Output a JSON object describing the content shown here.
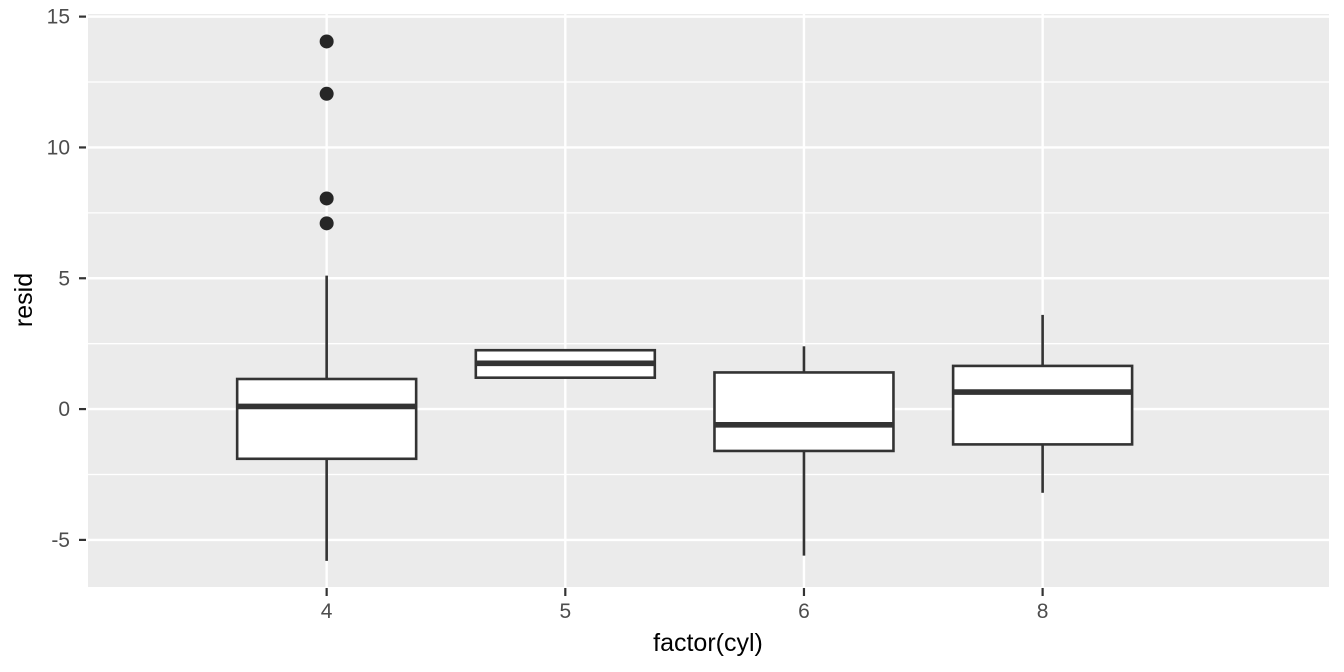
{
  "chart_data": {
    "type": "boxplot",
    "title": "",
    "xlabel": "factor(cyl)",
    "ylabel": "resid",
    "categories": [
      "4",
      "5",
      "6",
      "8"
    ],
    "y_major_ticks": [
      -5,
      0,
      5,
      10,
      15
    ],
    "y_minor_ticks": [
      -2.5,
      2.5,
      7.5,
      12.5
    ],
    "ylim": [
      -6.8,
      15.1
    ],
    "grid": true,
    "legend": false,
    "box_width_ratio": 0.75,
    "series": [
      {
        "category": "4",
        "whisker_low": -5.8,
        "q1": -1.9,
        "median": 0.1,
        "q3": 1.15,
        "whisker_high": 5.1,
        "outliers": [
          7.1,
          8.05,
          12.05,
          14.05
        ]
      },
      {
        "category": "5",
        "whisker_low": 1.2,
        "q1": 1.2,
        "median": 1.75,
        "q3": 2.25,
        "whisker_high": 2.25,
        "outliers": []
      },
      {
        "category": "6",
        "whisker_low": -5.6,
        "q1": -1.6,
        "median": -0.6,
        "q3": 1.4,
        "whisker_high": 2.4,
        "outliers": []
      },
      {
        "category": "8",
        "whisker_low": -3.2,
        "q1": -1.35,
        "median": 0.65,
        "q3": 1.65,
        "whisker_high": 3.6,
        "outliers": []
      }
    ],
    "colors": {
      "panel_bg": "#EBEBEB",
      "grid": "#FFFFFF",
      "box_stroke": "#333333",
      "box_fill": "#FFFFFF",
      "outlier": "#262626",
      "tick_mark": "#333333",
      "tick_label": "#4D4D4D",
      "axis_title": "#000000"
    }
  }
}
